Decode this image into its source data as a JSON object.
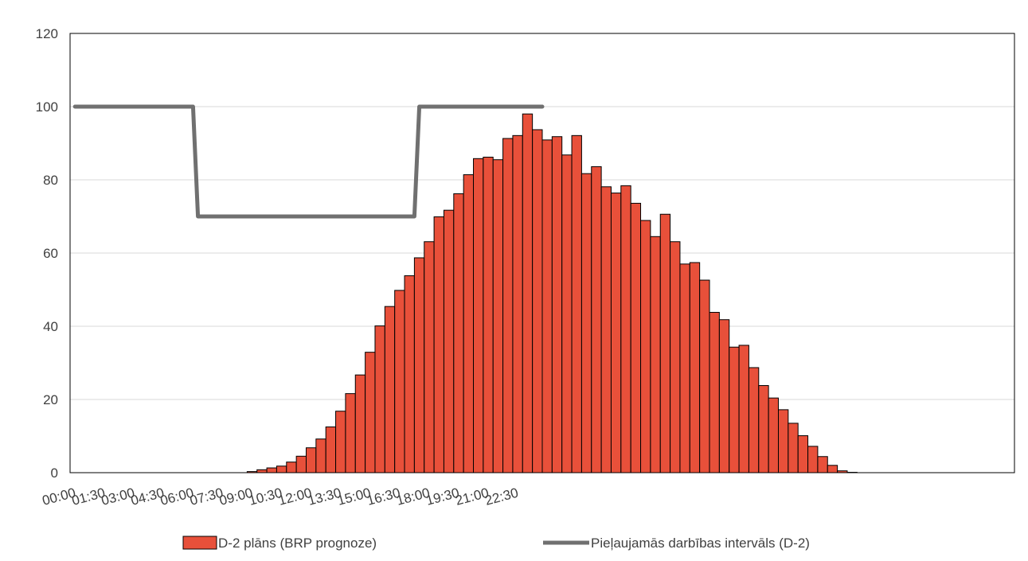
{
  "chart_data": {
    "type": "bar",
    "title": "",
    "xlabel": "",
    "ylabel": "",
    "ylim": [
      0,
      120
    ],
    "yticks": [
      0,
      20,
      40,
      60,
      80,
      100,
      120
    ],
    "grid": true,
    "legend_position": "bottom",
    "x_tick_labels": [
      "00:00",
      "01:30",
      "03:00",
      "04:30",
      "06:00",
      "07:30",
      "09:00",
      "10:30",
      "12:00",
      "13:30",
      "15:00",
      "16:30",
      "18:00",
      "19:30",
      "21:00",
      "22:30"
    ],
    "x_interval": "30 min",
    "series": [
      {
        "name": "D-2 plāns (BRP prognoze)",
        "type": "bar",
        "color": "#e8503a",
        "values": [
          0,
          0,
          0,
          0,
          0,
          0,
          0,
          0,
          0,
          0,
          0,
          0,
          0,
          0,
          0,
          0,
          0,
          0,
          0.3,
          0.8,
          1.3,
          1.8,
          2.9,
          4.5,
          6.8,
          9.2,
          12.5,
          16.8,
          21.6,
          26.7,
          32.9,
          40.1,
          45.4,
          49.8,
          53.8,
          58.7,
          63.1,
          69.9,
          71.7,
          76.2,
          81.4,
          85.8,
          86.2,
          85.5,
          91.3,
          92.1,
          98,
          93.7,
          90.9,
          91.8,
          86.8,
          92.1,
          81.7,
          83.6,
          78.1,
          76.4,
          78.4,
          73.6,
          68.9,
          64.5,
          70.6,
          63.1,
          57,
          57.4,
          52.6,
          43.8,
          41.8,
          34.3,
          34.8,
          28.7,
          23.8,
          20.4,
          17.2,
          13.5,
          10.1,
          7.2,
          4.4,
          2,
          0.5,
          0.1,
          0,
          0,
          0,
          0,
          0,
          0,
          0,
          0,
          0,
          0,
          0,
          0,
          0,
          0,
          0,
          0
        ]
      },
      {
        "name": "Pieļaujamās darbības intervāls (D-2)",
        "type": "line",
        "color": "#707070",
        "x": [
          "00:00",
          "06:00",
          "06:15",
          "17:15",
          "17:30",
          "23:45"
        ],
        "values": [
          100,
          100,
          70,
          70,
          100,
          100
        ]
      }
    ]
  }
}
